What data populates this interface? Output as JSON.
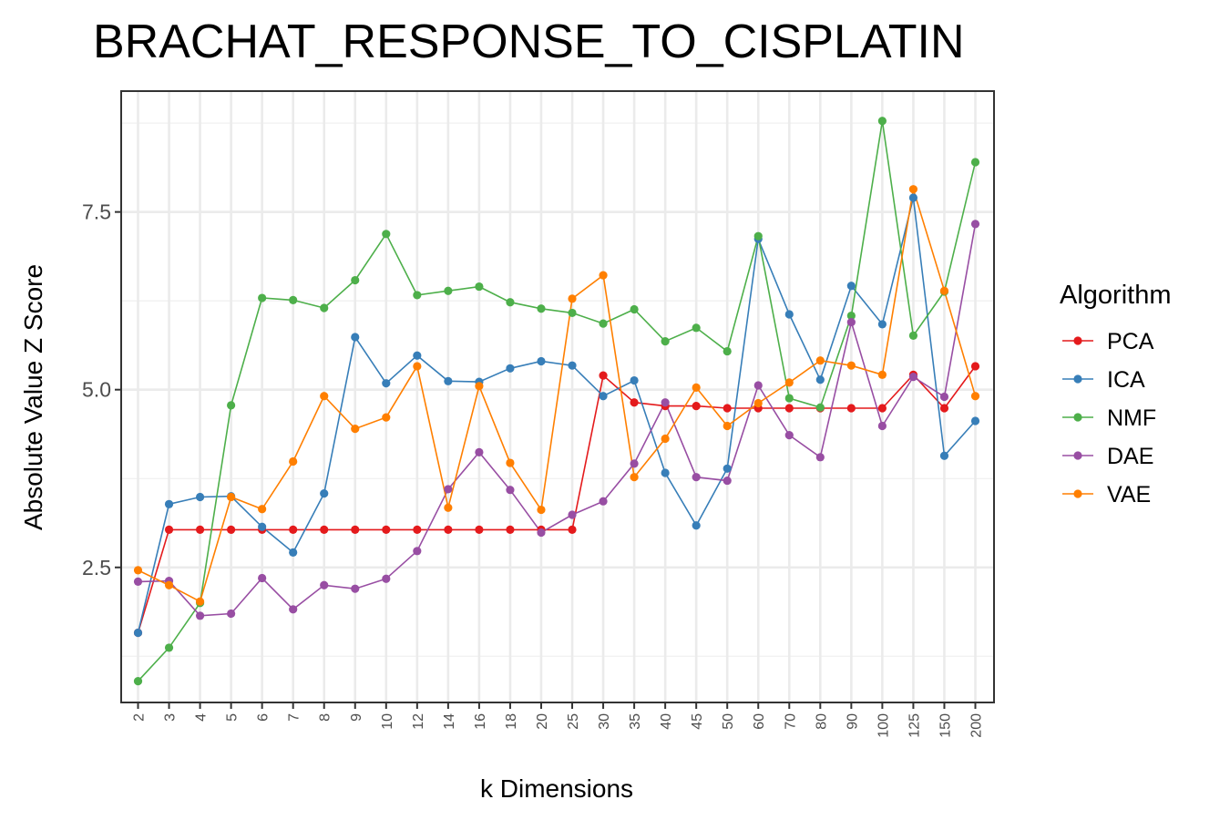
{
  "chart_data": {
    "type": "line",
    "title": "BRACHAT_RESPONSE_TO_CISPLATIN",
    "xlabel": "k Dimensions",
    "ylabel": "Absolute Value Z Score",
    "x_scale": "categorical",
    "categories": [
      "2",
      "3",
      "4",
      "5",
      "6",
      "7",
      "8",
      "9",
      "10",
      "12",
      "14",
      "16",
      "18",
      "20",
      "25",
      "30",
      "35",
      "40",
      "45",
      "50",
      "60",
      "70",
      "80",
      "90",
      "100",
      "125",
      "150",
      "200"
    ],
    "y_ticks": [
      "2.5",
      "5.0",
      "7.5"
    ],
    "ylim": [
      0.6,
      9.2
    ],
    "grid": true,
    "legend": {
      "title": "Algorithm",
      "position": "right"
    },
    "series": [
      {
        "name": "PCA",
        "color": "#e41a1c",
        "values": [
          1.58,
          3.03,
          3.03,
          3.03,
          3.03,
          3.03,
          3.03,
          3.03,
          3.03,
          3.03,
          3.03,
          3.03,
          3.03,
          3.03,
          3.03,
          5.2,
          4.82,
          4.77,
          4.77,
          4.74,
          4.74,
          4.74,
          4.74,
          4.74,
          4.74,
          5.21,
          4.74,
          5.33
        ]
      },
      {
        "name": "ICA",
        "color": "#377eb8",
        "values": [
          1.58,
          3.39,
          3.49,
          3.5,
          3.07,
          2.71,
          3.54,
          5.74,
          5.09,
          5.48,
          5.12,
          5.11,
          5.3,
          5.4,
          5.34,
          4.91,
          5.13,
          3.83,
          3.09,
          3.89,
          7.12,
          6.06,
          5.14,
          6.46,
          5.92,
          7.7,
          4.07,
          4.56
        ]
      },
      {
        "name": "NMF",
        "color": "#4daf4a",
        "values": [
          0.9,
          1.37,
          2.0,
          4.78,
          6.29,
          6.26,
          6.15,
          6.54,
          7.19,
          6.33,
          6.39,
          6.45,
          6.23,
          6.14,
          6.08,
          5.93,
          6.13,
          5.68,
          5.87,
          5.54,
          7.16,
          4.88,
          4.75,
          6.04,
          8.78,
          5.76,
          6.38,
          8.2
        ]
      },
      {
        "name": "DAE",
        "color": "#984ea3",
        "values": [
          2.3,
          2.31,
          1.82,
          1.85,
          2.35,
          1.91,
          2.25,
          2.2,
          2.34,
          2.73,
          3.6,
          4.12,
          3.59,
          2.99,
          3.24,
          3.43,
          3.96,
          4.82,
          3.77,
          3.72,
          5.06,
          4.36,
          4.05,
          5.95,
          4.49,
          5.18,
          4.9,
          7.33
        ]
      },
      {
        "name": "VAE",
        "color": "#ff7f00",
        "values": [
          2.46,
          2.25,
          2.02,
          3.49,
          3.32,
          3.99,
          4.91,
          4.45,
          4.61,
          5.33,
          3.34,
          5.05,
          3.97,
          3.31,
          6.28,
          6.61,
          3.77,
          4.31,
          5.03,
          4.49,
          4.81,
          5.1,
          5.41,
          5.34,
          5.21,
          7.82,
          6.39,
          4.91
        ]
      }
    ]
  }
}
